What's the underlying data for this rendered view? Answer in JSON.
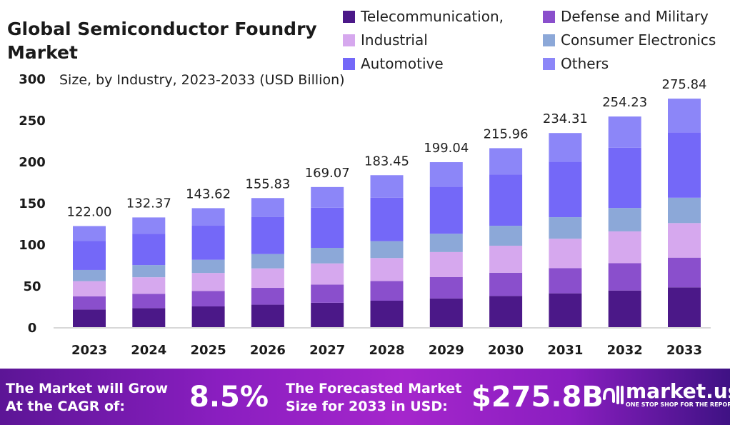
{
  "title": "Global Semiconductor Foundry Market",
  "subtitle": "Size, by Industry, 2023-2033 (USD Billion)",
  "chart_data": {
    "type": "bar",
    "stacked": true,
    "title": "Global Semiconductor Foundry Market",
    "subtitle": "Size, by Industry, 2023-2033 (USD Billion)",
    "categories": [
      "2023",
      "2024",
      "2025",
      "2026",
      "2027",
      "2028",
      "2029",
      "2030",
      "2031",
      "2032",
      "2033"
    ],
    "totals": [
      "122.00",
      "132.37",
      "143.62",
      "155.83",
      "169.07",
      "183.45",
      "199.04",
      "215.96",
      "234.31",
      "254.23",
      "275.84"
    ],
    "ylim": [
      0,
      300
    ],
    "yticks": [
      0,
      50,
      100,
      150,
      200,
      250,
      300
    ],
    "grid": false,
    "legend_position": "top-right",
    "series": [
      {
        "name": "Telecommunication,",
        "color": "#4b1888",
        "values": [
          21.2,
          23.0,
          25.0,
          27.1,
          29.4,
          31.9,
          34.6,
          37.6,
          40.8,
          44.2,
          48.0
        ]
      },
      {
        "name": "Defense and Military",
        "color": "#8a4fcc",
        "values": [
          15.9,
          17.2,
          18.7,
          20.3,
          22.0,
          23.8,
          25.9,
          28.1,
          30.5,
          33.0,
          35.9
        ]
      },
      {
        "name": "Industrial",
        "color": "#d6a8ee",
        "values": [
          18.4,
          20.0,
          21.7,
          23.5,
          25.5,
          27.7,
          30.1,
          32.6,
          35.4,
          38.4,
          41.7
        ]
      },
      {
        "name": "Consumer Electronics",
        "color": "#8ca8d8",
        "values": [
          13.5,
          14.7,
          15.9,
          17.3,
          18.8,
          20.4,
          22.1,
          24.0,
          26.0,
          28.2,
          30.6
        ]
      },
      {
        "name": "Automotive",
        "color": "#7468f8",
        "values": [
          34.9,
          37.9,
          41.1,
          44.6,
          48.4,
          52.5,
          56.9,
          61.8,
          67.0,
          72.7,
          78.9
        ]
      },
      {
        "name": "Others",
        "color": "#8c86f8",
        "values": [
          18.1,
          19.6,
          21.2,
          23.0,
          25.0,
          27.1,
          29.5,
          31.9,
          34.6,
          37.7,
          40.7
        ]
      }
    ]
  },
  "banner": {
    "cagr_label": [
      "The Market will Grow",
      "At the CAGR of:"
    ],
    "cagr_value": "8.5%",
    "forecast_label": [
      "The Forecasted Market",
      "Size for 2033 in USD:"
    ],
    "forecast_value": "$275.8B",
    "logo_name": "market.us",
    "logo_tagline": "ONE STOP SHOP FOR THE REPORTS"
  }
}
